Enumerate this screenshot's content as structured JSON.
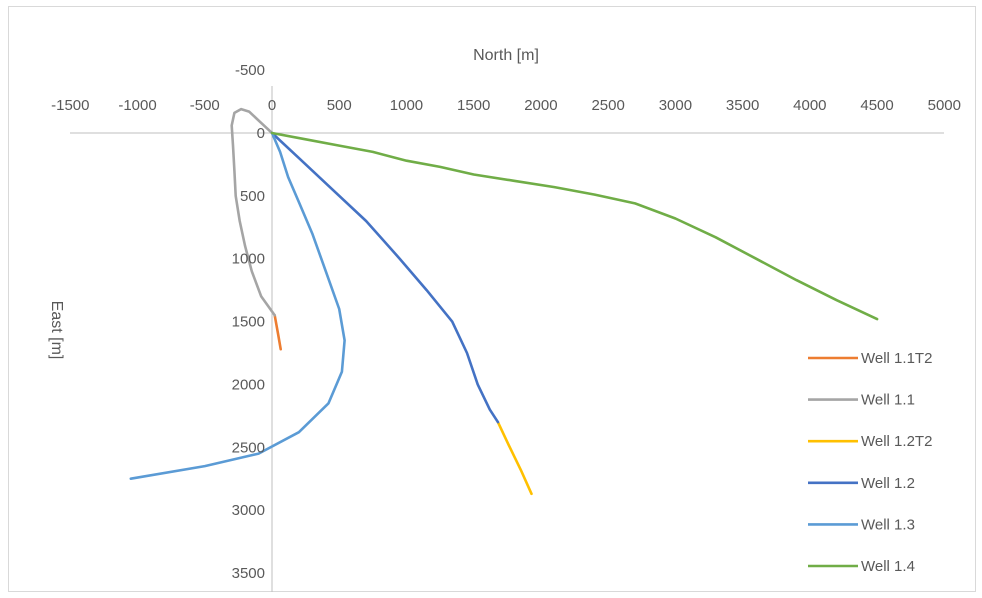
{
  "chart_data": {
    "type": "line",
    "title": "",
    "xlabel": "North [m]",
    "ylabel": "East [m]",
    "xlim": [
      -1500,
      5000
    ],
    "ylim": [
      -500,
      3500
    ],
    "y_reversed": true,
    "x_ticks": [
      "-1500",
      "-1000",
      "-500",
      "0",
      "500",
      "1000",
      "1500",
      "2000",
      "2500",
      "3000",
      "3500",
      "4000",
      "4500",
      "5000"
    ],
    "y_ticks": [
      "-500",
      "0",
      "500",
      "1000",
      "1500",
      "2000",
      "2500",
      "3000",
      "3500"
    ],
    "legend_position": "right",
    "series": [
      {
        "name": "Well 1.1T2",
        "color": "#ED7D31",
        "points": [
          [
            20,
            1450
          ],
          [
            45,
            1600
          ],
          [
            65,
            1720
          ]
        ]
      },
      {
        "name": "Well 1.1",
        "color": "#A5A5A5",
        "points": [
          [
            0,
            0
          ],
          [
            -80,
            -80
          ],
          [
            -170,
            -170
          ],
          [
            -230,
            -190
          ],
          [
            -280,
            -160
          ],
          [
            -300,
            -60
          ],
          [
            -290,
            100
          ],
          [
            -280,
            300
          ],
          [
            -270,
            500
          ],
          [
            -240,
            700
          ],
          [
            -200,
            900
          ],
          [
            -150,
            1100
          ],
          [
            -80,
            1300
          ],
          [
            20,
            1450
          ]
        ]
      },
      {
        "name": "Well 1.2T2",
        "color": "#FFC000",
        "points": [
          [
            1680,
            2300
          ],
          [
            1760,
            2480
          ],
          [
            1850,
            2680
          ],
          [
            1930,
            2870
          ]
        ]
      },
      {
        "name": "Well 1.2",
        "color": "#4472C4",
        "points": [
          [
            0,
            0
          ],
          [
            200,
            200
          ],
          [
            450,
            450
          ],
          [
            700,
            700
          ],
          [
            950,
            1000
          ],
          [
            1150,
            1250
          ],
          [
            1340,
            1500
          ],
          [
            1450,
            1750
          ],
          [
            1530,
            2000
          ],
          [
            1620,
            2200
          ],
          [
            1680,
            2300
          ]
        ]
      },
      {
        "name": "Well 1.3",
        "color": "#5B9BD5",
        "points": [
          [
            0,
            0
          ],
          [
            60,
            150
          ],
          [
            120,
            350
          ],
          [
            200,
            550
          ],
          [
            300,
            800
          ],
          [
            400,
            1100
          ],
          [
            500,
            1400
          ],
          [
            540,
            1650
          ],
          [
            520,
            1900
          ],
          [
            420,
            2150
          ],
          [
            200,
            2380
          ],
          [
            -100,
            2550
          ],
          [
            -500,
            2650
          ],
          [
            -1050,
            2750
          ]
        ]
      },
      {
        "name": "Well 1.4",
        "color": "#70AD47",
        "points": [
          [
            0,
            0
          ],
          [
            250,
            50
          ],
          [
            500,
            100
          ],
          [
            750,
            150
          ],
          [
            1000,
            220
          ],
          [
            1250,
            270
          ],
          [
            1500,
            330
          ],
          [
            1800,
            380
          ],
          [
            2100,
            430
          ],
          [
            2400,
            490
          ],
          [
            2700,
            560
          ],
          [
            3000,
            680
          ],
          [
            3300,
            830
          ],
          [
            3600,
            1000
          ],
          [
            3900,
            1170
          ],
          [
            4200,
            1330
          ],
          [
            4500,
            1480
          ]
        ]
      }
    ]
  }
}
